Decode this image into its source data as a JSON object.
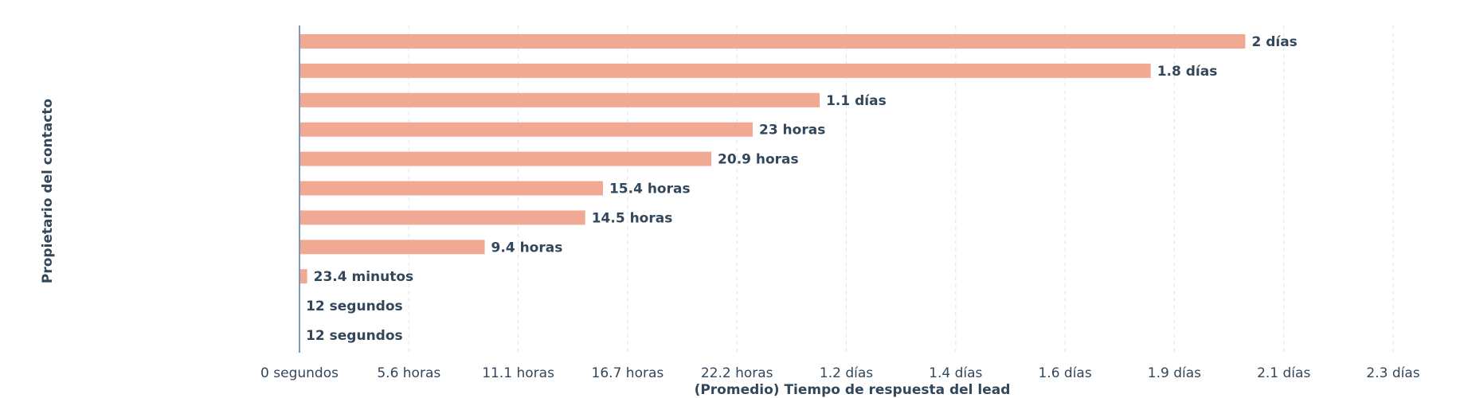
{
  "chart_data": {
    "type": "bar",
    "orientation": "horizontal",
    "xlabel": "(Promedio) Tiempo de respuesta del lead",
    "ylabel": "Propietario del contacto",
    "unit": "hours",
    "x_ticks": [
      "0 segundos",
      "5.6 horas",
      "11.1 horas",
      "16.7 horas",
      "22.2 horas",
      "1.2 días",
      "1.4 días",
      "1.6 días",
      "1.9 días",
      "2.1 días",
      "2.3 días"
    ],
    "xlim": [
      0,
      55.5
    ],
    "grid": true,
    "bar_color": "#f2a994",
    "categories": [
      "",
      "",
      "",
      "",
      "",
      "",
      "",
      "",
      "",
      "",
      ""
    ],
    "values": [
      48,
      43.2,
      26.4,
      23,
      20.9,
      15.4,
      14.5,
      9.4,
      0.39,
      0.0033,
      0.0033
    ],
    "data_labels": [
      "2 días",
      "1.8 días",
      "1.1 días",
      "23 horas",
      "20.9 horas",
      "15.4 horas",
      "14.5 horas",
      "9.4 horas",
      "23.4 minutos",
      "12 segundos",
      "12 segundos"
    ]
  }
}
